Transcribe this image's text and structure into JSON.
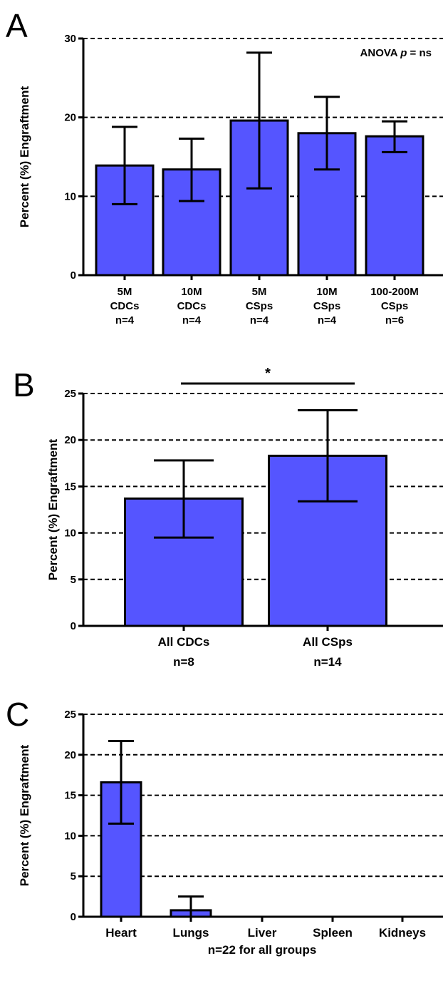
{
  "chart_data": [
    {
      "panel": "A",
      "type": "bar",
      "ylabel": "Percent  (%) Engraftment",
      "ylim": [
        0,
        30
      ],
      "yticks": [
        0,
        10,
        20,
        30
      ],
      "grid": true,
      "annotation": {
        "prefix": "ANOVA ",
        "italic": "p",
        "suffix": " = ns"
      },
      "categories": [
        [
          "5M",
          "CDCs",
          "n=4"
        ],
        [
          "10M",
          "CDCs",
          "n=4"
        ],
        [
          "5M",
          "CSps",
          "n=4"
        ],
        [
          "10M",
          "CSps",
          "n=4"
        ],
        [
          "100-200M",
          "CSps",
          "n=6"
        ]
      ],
      "values": [
        13.9,
        13.4,
        19.6,
        18.0,
        17.6
      ],
      "err_low": [
        9.0,
        9.4,
        11.0,
        13.4,
        15.6
      ],
      "err_high": [
        18.8,
        17.3,
        28.2,
        22.6,
        19.5
      ],
      "color": "#5555ff"
    },
    {
      "panel": "B",
      "type": "bar",
      "ylabel": "Percent  (%) Engraftment",
      "ylim": [
        0,
        25
      ],
      "yticks": [
        0,
        5,
        10,
        15,
        20,
        25
      ],
      "grid": true,
      "significance": "*",
      "categories": [
        [
          "All CDCs",
          "n=8"
        ],
        [
          "All CSps",
          "n=14"
        ]
      ],
      "values": [
        13.7,
        18.3
      ],
      "err_low": [
        9.5,
        13.4
      ],
      "err_high": [
        17.8,
        23.2
      ],
      "color": "#5555ff"
    },
    {
      "panel": "C",
      "type": "bar",
      "ylabel": "Percent  (%) Engraftment",
      "xlabel": "n=22 for all groups",
      "ylim": [
        0,
        25
      ],
      "yticks": [
        0,
        5,
        10,
        15,
        20,
        25
      ],
      "grid": true,
      "categories": [
        "Heart",
        "Lungs",
        "Liver",
        "Spleen",
        "Kidneys"
      ],
      "values": [
        16.6,
        0.8,
        0,
        0,
        0
      ],
      "err_low": [
        11.5,
        0,
        0,
        0,
        0
      ],
      "err_high": [
        21.7,
        2.5,
        0,
        0,
        0
      ],
      "color": "#5555ff"
    }
  ]
}
